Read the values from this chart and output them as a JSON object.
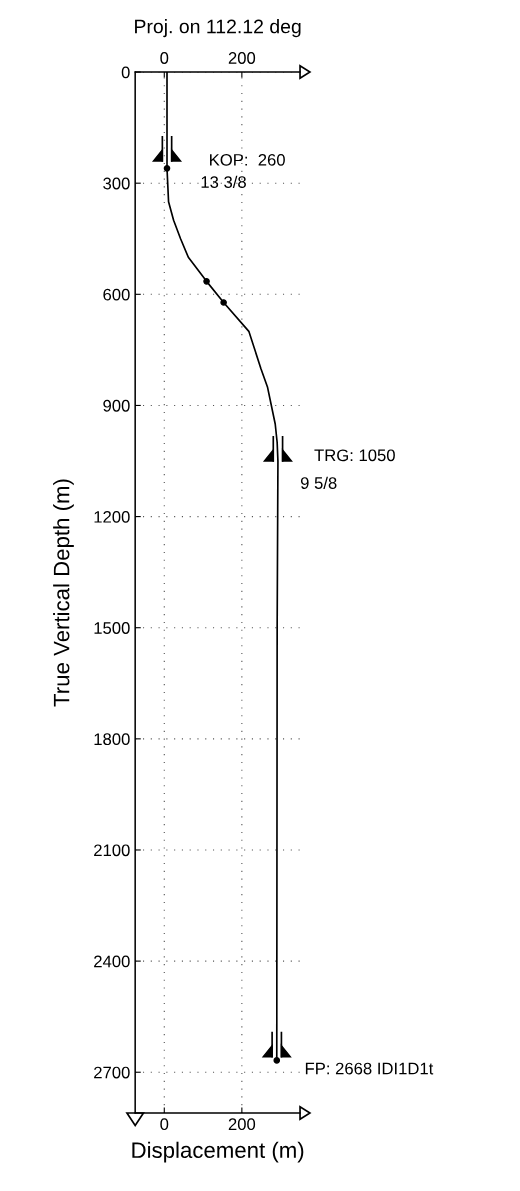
{
  "chart_data": {
    "type": "line",
    "title": "Proj. on 112.12 deg",
    "xlabel": "Displacement (m)",
    "ylabel": "True Vertical Depth (m)",
    "series": [
      {
        "color": "#000000",
        "marker": "none",
        "x": [
          7,
          7,
          11,
          24,
          42,
          62,
          109,
          153,
          218,
          249,
          266,
          286,
          291,
          293,
          291,
          290
        ],
        "values": [
          0,
          260,
          350,
          400,
          450,
          500,
          565,
          622,
          700,
          800,
          850,
          950,
          1000,
          1050,
          1500,
          2668
        ]
      },
      {
        "type": "scatter",
        "color": "#000000",
        "marker": "circle",
        "x": [
          7,
          109,
          153,
          290
        ],
        "values": [
          260,
          565,
          622,
          2668
        ]
      }
    ],
    "xlim": [
      -75,
      350
    ],
    "xticks": [
      0,
      200
    ],
    "x2lim": [
      -75,
      350
    ],
    "x2ticks": [
      0,
      200
    ],
    "ylim": [
      2810,
      0
    ],
    "yticks": [
      0,
      300,
      600,
      900,
      1200,
      1500,
      1800,
      2100,
      2400,
      2700
    ],
    "grid": true,
    "line_style": "solid",
    "annotations": [
      {
        "text": "KOP:  260",
        "x": 7,
        "y": 260
      },
      {
        "text": "13 3/8",
        "x": 7,
        "y": 260
      },
      {
        "text": "TRG: 1050",
        "x": 293,
        "y": 1050
      },
      {
        "text": "9 5/8",
        "x": 293,
        "y": 1050
      },
      {
        "text": "FP: 2668 IDI1D1t",
        "x": 290,
        "y": 2668
      }
    ]
  }
}
